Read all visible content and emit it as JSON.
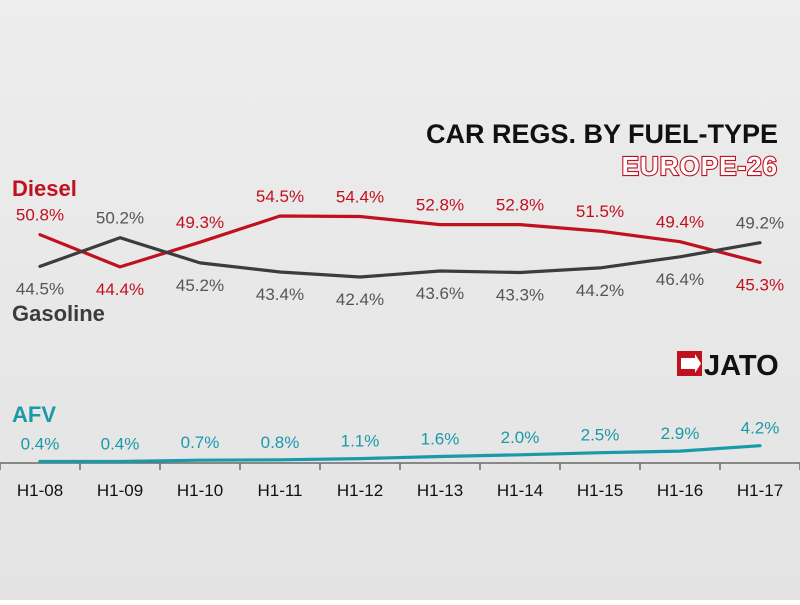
{
  "chart_data": {
    "type": "line",
    "title": "CAR REGS. BY FUEL-TYPE",
    "subtitle": "EUROPE-26",
    "brand": "JATO",
    "categories": [
      "H1-08",
      "H1-09",
      "H1-10",
      "H1-11",
      "H1-12",
      "H1-13",
      "H1-14",
      "H1-15",
      "H1-16",
      "H1-17"
    ],
    "series": [
      {
        "name": "Diesel",
        "color": "#c0111f",
        "values": [
          50.8,
          44.4,
          49.3,
          54.5,
          54.4,
          52.8,
          52.8,
          51.5,
          49.4,
          45.3
        ],
        "labels": [
          "50.8%",
          "44.4%",
          "49.3%",
          "54.5%",
          "54.4%",
          "52.8%",
          "52.8%",
          "51.5%",
          "49.4%",
          "45.3%"
        ],
        "label_pos": [
          "above",
          "below",
          "above",
          "above",
          "above",
          "above",
          "above",
          "above",
          "above",
          "below"
        ]
      },
      {
        "name": "Gasoline",
        "color": "#3c3c3e",
        "label_color": "#555557",
        "values": [
          44.5,
          50.2,
          45.2,
          43.4,
          42.4,
          43.6,
          43.3,
          44.2,
          46.4,
          49.2
        ],
        "labels": [
          "44.5%",
          "50.2%",
          "45.2%",
          "43.4%",
          "42.4%",
          "43.6%",
          "43.3%",
          "44.2%",
          "46.4%",
          "49.2%"
        ],
        "label_pos": [
          "below",
          "above",
          "below",
          "below",
          "below",
          "below",
          "below",
          "below",
          "below",
          "above"
        ]
      },
      {
        "name": "AFV",
        "color": "#1a9aa8",
        "values": [
          0.4,
          0.4,
          0.7,
          0.8,
          1.1,
          1.6,
          2.0,
          2.5,
          2.9,
          4.2
        ],
        "labels": [
          "0.4%",
          "0.4%",
          "0.7%",
          "0.8%",
          "1.1%",
          "1.6%",
          "2.0%",
          "2.5%",
          "2.9%",
          "4.2%"
        ],
        "label_pos": [
          "above",
          "above",
          "above",
          "above",
          "above",
          "above",
          "above",
          "above",
          "above",
          "above"
        ]
      }
    ],
    "xlabel": "",
    "ylabel": "",
    "grid": false,
    "legend": "inline-left",
    "ylim_main": [
      38,
      58
    ],
    "ylim_afv": [
      0,
      5
    ]
  }
}
